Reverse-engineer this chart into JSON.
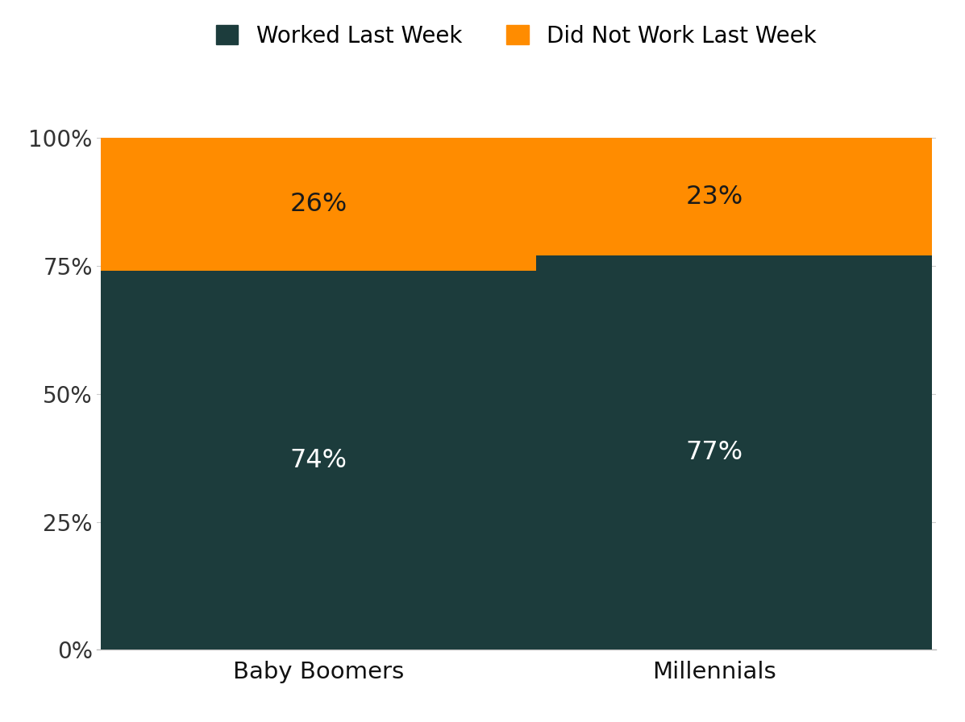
{
  "categories": [
    "Baby Boomers",
    "Millennials"
  ],
  "worked_values": [
    74,
    77
  ],
  "did_not_work_values": [
    26,
    23
  ],
  "worked_color": "#1C3C3C",
  "did_not_work_color": "#FF8C00",
  "worked_label": "Worked Last Week",
  "did_not_work_label": "Did Not Work Last Week",
  "worked_text_color": "#FFFFFF",
  "did_not_work_text_color": "#1A1A1A",
  "yticks": [
    0,
    25,
    50,
    75,
    100
  ],
  "ytick_labels": [
    "0%",
    "25%",
    "50%",
    "75%",
    "100%"
  ],
  "bar_width": 0.55,
  "bar_positions": [
    0.28,
    0.78
  ],
  "xlim": [
    0.0,
    1.06
  ],
  "label_fontsize": 21,
  "tick_fontsize": 20,
  "legend_fontsize": 20,
  "value_fontsize": 23,
  "background_color": "#FFFFFF"
}
